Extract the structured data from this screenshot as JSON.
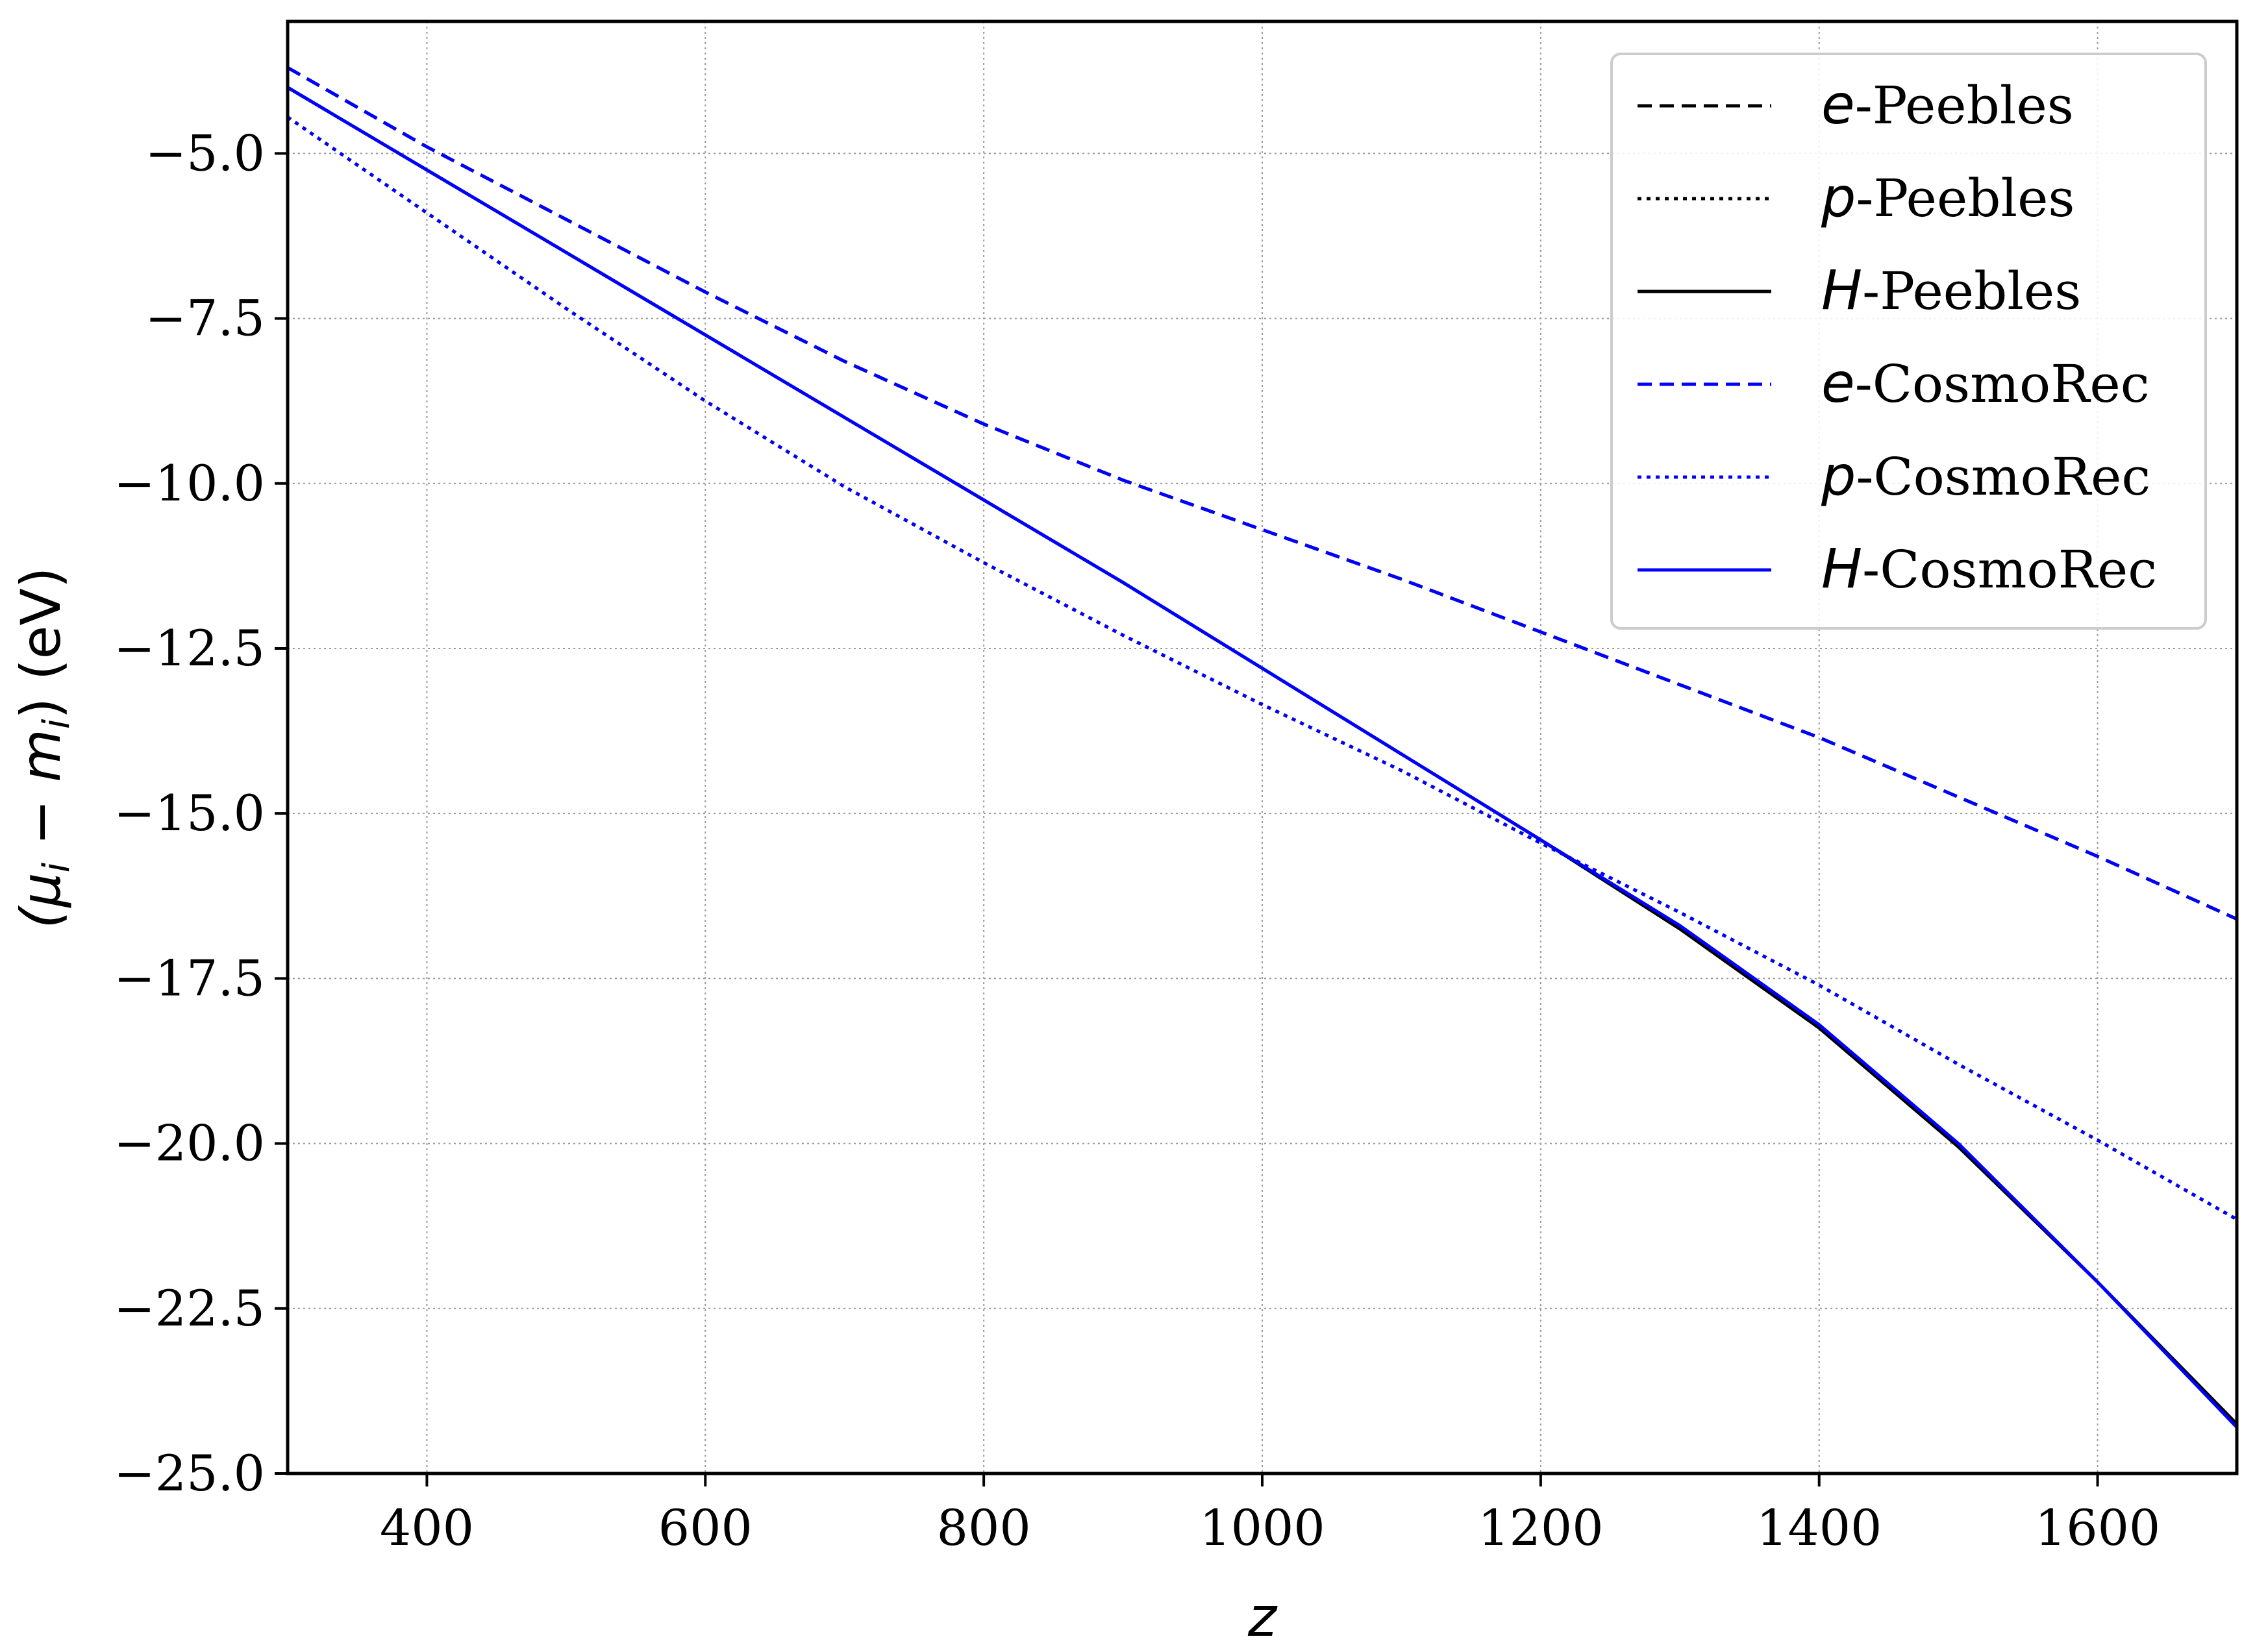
{
  "chart_data": {
    "type": "line",
    "title": "",
    "xlabel": "z",
    "ylabel": "(μ_i − m_i) (eV)",
    "ylabel_parts": {
      "open": "(μ",
      "sub1": "i",
      "minus": " − m",
      "sub2": "i",
      "unit": ") (eV)"
    },
    "xlim": [
      300,
      1700
    ],
    "ylim": [
      -25.0,
      -3.0
    ],
    "xticks": [
      400,
      600,
      800,
      1000,
      1200,
      1400,
      1600
    ],
    "yticks": [
      -5.0,
      -7.5,
      -10.0,
      -12.5,
      -15.0,
      -17.5,
      -20.0,
      -22.5,
      -25.0
    ],
    "xtick_labels": [
      "400",
      "600",
      "800",
      "1000",
      "1200",
      "1400",
      "1600"
    ],
    "ytick_labels": [
      "−5.0",
      "−7.5",
      "−10.0",
      "−12.5",
      "−15.0",
      "−17.5",
      "−20.0",
      "−22.5",
      "−25.0"
    ],
    "grid": true,
    "legend_position": "top-right",
    "x": [
      300,
      400,
      500,
      600,
      700,
      800,
      900,
      1000,
      1100,
      1200,
      1300,
      1400,
      1500,
      1600,
      1700
    ],
    "series": [
      {
        "name": "e-Peebles",
        "prefix": "e",
        "suffix": "-Peebles",
        "color": "#000000",
        "dash": "dashed",
        "values": [
          -3.7,
          -4.9,
          -6.0,
          -7.1,
          -8.15,
          -9.1,
          -9.95,
          -10.7,
          -11.45,
          -12.25,
          -13.05,
          -13.85,
          -14.75,
          -15.65,
          -16.6
        ]
      },
      {
        "name": "p-Peebles",
        "prefix": "p",
        "suffix": "-Peebles",
        "color": "#000000",
        "dash": "dotted",
        "values": [
          -4.45,
          -5.9,
          -7.35,
          -8.75,
          -10.05,
          -11.2,
          -12.3,
          -13.35,
          -14.35,
          -15.45,
          -16.5,
          -17.6,
          -18.8,
          -19.95,
          -21.15
        ]
      },
      {
        "name": "H-Peebles",
        "prefix": "H",
        "suffix": "-Peebles",
        "color": "#000000",
        "dash": "solid",
        "values": [
          -4.0,
          -5.25,
          -6.5,
          -7.75,
          -9.0,
          -10.25,
          -11.5,
          -12.8,
          -14.1,
          -15.4,
          -16.75,
          -18.25,
          -20.05,
          -22.1,
          -24.25
        ]
      },
      {
        "name": "e-CosmoRec",
        "prefix": "e",
        "suffix": "-CosmoRec",
        "color": "#0000ff",
        "dash": "dashed",
        "values": [
          -3.7,
          -4.9,
          -6.0,
          -7.1,
          -8.15,
          -9.1,
          -9.95,
          -10.7,
          -11.45,
          -12.25,
          -13.05,
          -13.85,
          -14.75,
          -15.65,
          -16.6
        ]
      },
      {
        "name": "p-CosmoRec",
        "prefix": "p",
        "suffix": "-CosmoRec",
        "color": "#0000ff",
        "dash": "dotted",
        "values": [
          -4.45,
          -5.9,
          -7.35,
          -8.75,
          -10.05,
          -11.2,
          -12.3,
          -13.35,
          -14.35,
          -15.45,
          -16.5,
          -17.6,
          -18.8,
          -19.95,
          -21.15
        ]
      },
      {
        "name": "H-CosmoRec",
        "prefix": "H",
        "suffix": "-CosmoRec",
        "color": "#0000ff",
        "dash": "solid",
        "values": [
          -4.0,
          -5.25,
          -6.5,
          -7.75,
          -9.0,
          -10.25,
          -11.5,
          -12.8,
          -14.1,
          -15.4,
          -16.7,
          -18.2,
          -20.0,
          -22.1,
          -24.3
        ]
      }
    ]
  }
}
